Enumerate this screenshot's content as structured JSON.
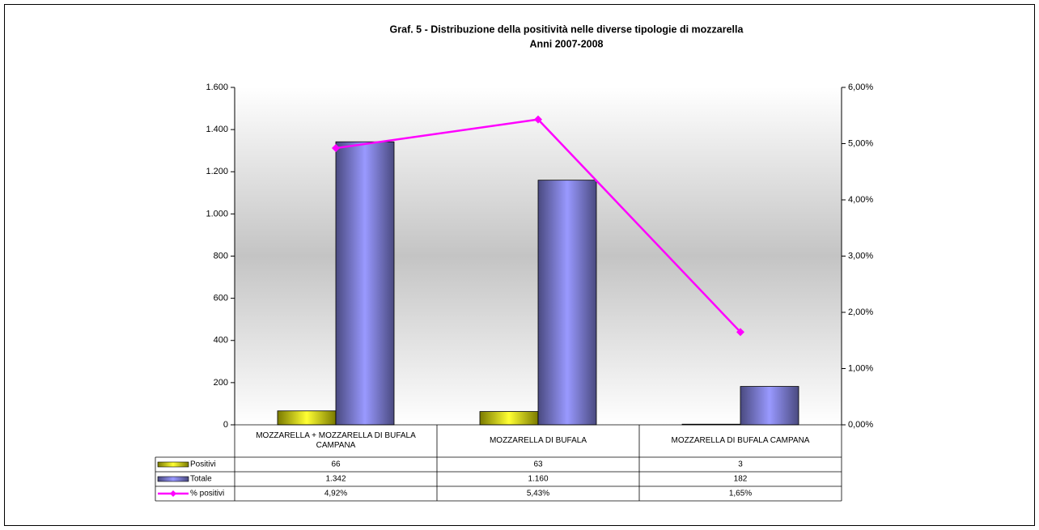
{
  "chart_data": {
    "type": "bar",
    "title": "Graf. 5 - Distribuzione della positività nelle diverse tipologie di mozzarella",
    "subtitle": "Anni 2007-2008",
    "categories": [
      "MOZZARELLA +  MOZZARELLA DI BUFALA CAMPANA",
      "MOZZARELLA DI BUFALA",
      "MOZZARELLA DI BUFALA CAMPANA"
    ],
    "series": [
      {
        "name": "Positivi",
        "type": "bar",
        "color": "#e6e600",
        "values": [
          66,
          63,
          3
        ]
      },
      {
        "name": "Totale",
        "type": "bar",
        "color": "#9999ff",
        "values": [
          1342,
          1160,
          182
        ],
        "value_labels": [
          "1.342",
          "1.160",
          "182"
        ]
      },
      {
        "name": "% positivi",
        "type": "line",
        "axis": "y2",
        "color": "#ff00ff",
        "values": [
          4.92,
          5.43,
          1.65
        ],
        "value_labels": [
          "4,92%",
          "5,43%",
          "1,65%"
        ]
      }
    ],
    "ylim": [
      0,
      1600
    ],
    "yticks": [
      0,
      200,
      400,
      600,
      800,
      {
        "value": 1000,
        "label": "1.000"
      },
      {
        "value": 1200,
        "label": "1.200"
      },
      {
        "value": 1400,
        "label": "1.400"
      },
      {
        "value": 1600,
        "label": "1.600"
      }
    ],
    "y2lim": [
      0,
      6
    ],
    "y2ticks": [
      {
        "value": 0,
        "label": "0,00%"
      },
      {
        "value": 1,
        "label": "1,00%"
      },
      {
        "value": 2,
        "label": "2,00%"
      },
      {
        "value": 3,
        "label": "3,00%"
      },
      {
        "value": 4,
        "label": "4,00%"
      },
      {
        "value": 5,
        "label": "5,00%"
      },
      {
        "value": 6,
        "label": "6,00%"
      }
    ],
    "data_table": true
  }
}
